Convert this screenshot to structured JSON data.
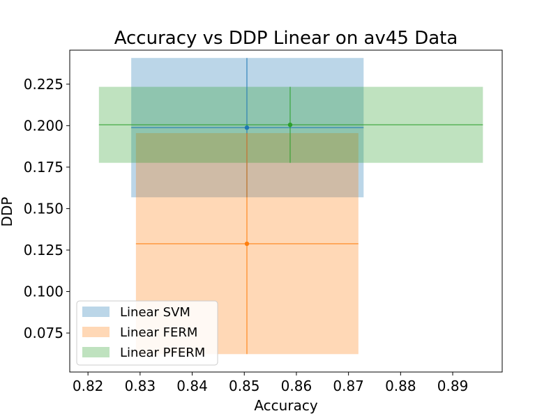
{
  "chart_data": {
    "type": "scatter",
    "title": "Accuracy vs DDP Linear on av45 Data",
    "xlabel": "Accuracy",
    "ylabel": "DDP",
    "xlim": [
      0.8165,
      0.8995
    ],
    "ylim": [
      0.0515,
      0.2455
    ],
    "x_ticks": [
      0.82,
      0.83,
      0.84,
      0.85,
      0.86,
      0.87,
      0.88,
      0.89
    ],
    "x_tick_labels": [
      "0.82",
      "0.83",
      "0.84",
      "0.85",
      "0.86",
      "0.87",
      "0.88",
      "0.89"
    ],
    "y_ticks": [
      0.075,
      0.1,
      0.125,
      0.15,
      0.175,
      0.2,
      0.225
    ],
    "y_tick_labels": [
      "0.075",
      "0.100",
      "0.125",
      "0.150",
      "0.175",
      "0.200",
      "0.225"
    ],
    "grid": false,
    "legend_position": "lower-left",
    "series": [
      {
        "name": "Linear SVM",
        "color": "#1f77b4",
        "x": 0.8505,
        "y": 0.1988,
        "x_err": [
          0.8283,
          0.8729
        ],
        "y_err": [
          0.1568,
          0.2408
        ]
      },
      {
        "name": "Linear FERM",
        "color": "#ff7f0e",
        "x": 0.8505,
        "y": 0.1288,
        "x_err": [
          0.8292,
          0.8719
        ],
        "y_err": [
          0.0623,
          0.1955
        ]
      },
      {
        "name": "Linear PFERM",
        "color": "#2ca02c",
        "x": 0.8588,
        "y": 0.2005,
        "x_err": [
          0.8221,
          0.8958
        ],
        "y_err": [
          0.1776,
          0.2234
        ]
      }
    ]
  }
}
